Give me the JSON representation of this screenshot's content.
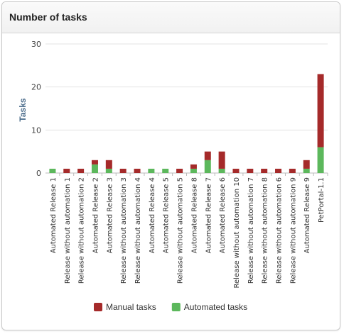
{
  "panel": {
    "title": "Number of tasks"
  },
  "chart_data": {
    "type": "bar",
    "stacked": true,
    "categories": [
      "Automated Release 1",
      "Release without automation 1",
      "Release without automation 2",
      "Automated Release 2",
      "Automated Release 3",
      "Release without automation 3",
      "Release without automation 4",
      "Automated Release 4",
      "Automated Release 5",
      "Release without automation 5",
      "Automated Release 8",
      "Automated Release 7",
      "Automated Release 6",
      "Release without automation 10",
      "Release without automation 7",
      "Release without automation 8",
      "Release without automation 6",
      "Release without automation 9",
      "Automated Release 9",
      "PetPortal-1.1"
    ],
    "series": [
      {
        "name": "Automated tasks",
        "color": "#5cb85c",
        "values": [
          1,
          0,
          0,
          2,
          1,
          0,
          0,
          1,
          1,
          0,
          1,
          3,
          1,
          0,
          0,
          0,
          0,
          0,
          1,
          6
        ]
      },
      {
        "name": "Manual tasks",
        "color": "#a52a2a",
        "values": [
          0,
          1,
          1,
          1,
          2,
          1,
          1,
          0,
          0,
          1,
          1,
          2,
          4,
          1,
          1,
          1,
          1,
          1,
          2,
          17
        ]
      }
    ],
    "ylabel": "Tasks",
    "xlabel": "",
    "ylim": [
      0,
      30
    ],
    "yticks": [
      0,
      10,
      20,
      30
    ],
    "grid": true,
    "legend_position": "bottom",
    "legend": [
      {
        "name": "Manual tasks",
        "color": "#a52a2a"
      },
      {
        "name": "Automated tasks",
        "color": "#5cb85c"
      }
    ]
  }
}
